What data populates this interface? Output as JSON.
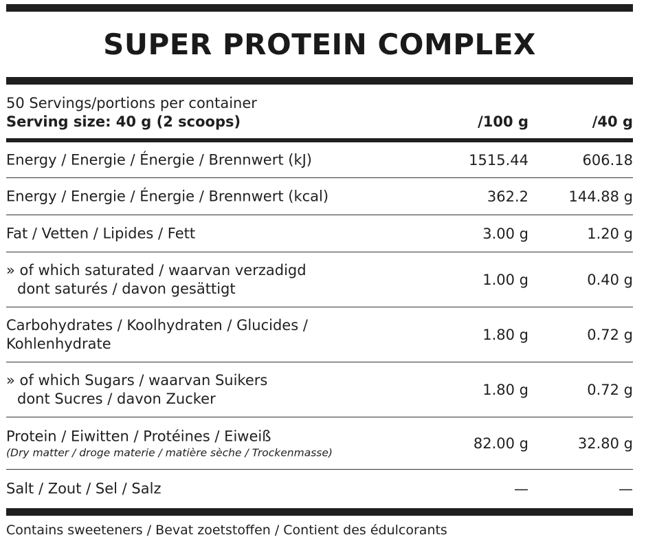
{
  "title": "SUPER PROTEIN COMPLEX",
  "header": {
    "servings": "50 Servings/portions per container",
    "serving_size": "Serving size: 40 g (2 scoops)",
    "col_per100": "/100 g",
    "col_per40": "/40 g"
  },
  "rows": [
    {
      "label": "Energy / Energie / Énergie / Brennwert (kJ)",
      "per100": "1515.44",
      "per40": "606.18"
    },
    {
      "label": "Energy / Energie / Énergie / Brennwert (kcal)",
      "per100": "362.2",
      "per40": "144.88 g"
    },
    {
      "label": "Fat / Vetten / Lipides / Fett",
      "per100": "3.00 g",
      "per40": "1.20 g"
    },
    {
      "label": "» of which saturated / waarvan verzadigd",
      "label2": "dont saturés / davon gesättigt",
      "per100": "1.00 g",
      "per40": "0.40 g"
    },
    {
      "label": "Carbohydrates / Koolhydraten / Glucides /",
      "label2": "Kohlenhydrate",
      "per100": "1.80 g",
      "per40": "0.72 g"
    },
    {
      "label": "» of which Sugars / waarvan Suikers",
      "label2": "dont Sucres / davon Zucker",
      "per100": "1.80 g",
      "per40": "0.72 g"
    },
    {
      "label": "Protein / Eiwitten / Protéines / Eiweiß",
      "note": "(Dry matter / droge materie / matière sèche / Trockenmasse)",
      "per100": "82.00 g",
      "per40": "32.80 g"
    },
    {
      "label": "Salt / Zout / Sel / Salz",
      "per100": "—",
      "per40": "—"
    }
  ],
  "footer": "Contains sweeteners  / Bevat zoetstoffen / Contient des édulcorants"
}
